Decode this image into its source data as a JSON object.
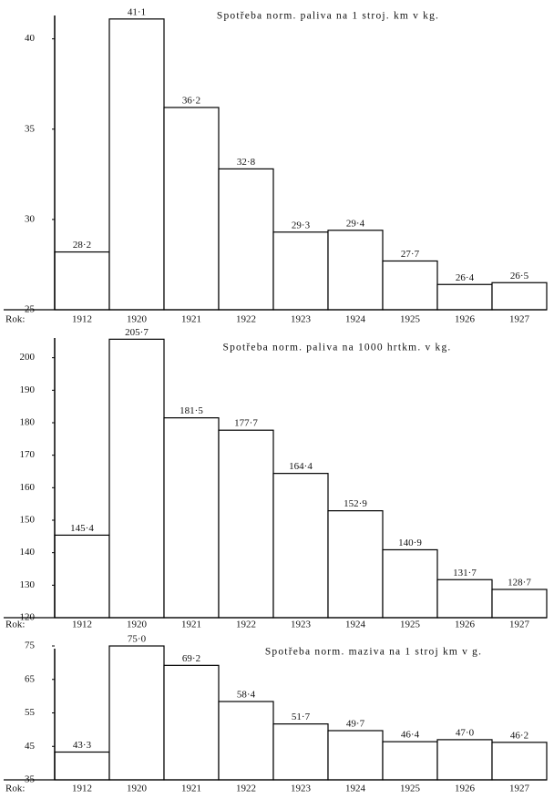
{
  "chart_data": [
    {
      "type": "bar",
      "title": "Spotřeba norm. paliva na 1 stroj. km v kg.",
      "x_label": "Rok:",
      "categories": [
        "1912",
        "1920",
        "1921",
        "1922",
        "1923",
        "1924",
        "1925",
        "1926",
        "1927"
      ],
      "values": [
        28.2,
        41.1,
        36.2,
        32.8,
        29.3,
        29.4,
        27.7,
        26.4,
        26.5
      ],
      "value_labels": [
        "28·2",
        "41·1",
        "36·2",
        "32·8",
        "29·3",
        "29·4",
        "27·7",
        "26·4",
        "26·5"
      ],
      "color": "#ffffff",
      "edgecolor": "#000000",
      "ylim": [
        25,
        42
      ],
      "yticks": [
        25,
        30,
        35,
        40
      ],
      "grid": false
    },
    {
      "type": "bar",
      "title": "Spotřeba norm. paliva na 1000 hrtkm. v kg.",
      "x_label": "Rok:",
      "categories": [
        "1912",
        "1920",
        "1921",
        "1922",
        "1923",
        "1924",
        "1925",
        "1926",
        "1927"
      ],
      "values": [
        145.4,
        205.7,
        181.5,
        177.7,
        164.4,
        152.9,
        140.9,
        131.7,
        128.7
      ],
      "value_labels": [
        "145·4",
        "205·7",
        "181·5",
        "177·7",
        "164·4",
        "152·9",
        "140·9",
        "131·7",
        "128·7"
      ],
      "color": "#ffffff",
      "edgecolor": "#000000",
      "ylim": [
        120,
        210
      ],
      "yticks": [
        120,
        130,
        140,
        150,
        160,
        170,
        180,
        190,
        200
      ],
      "grid": false
    },
    {
      "type": "bar",
      "title": "Spotřeba norm. maziva na 1 stroj km v g.",
      "x_label": "Rok:",
      "categories": [
        "1912",
        "1920",
        "1921",
        "1922",
        "1923",
        "1924",
        "1925",
        "1926",
        "1927"
      ],
      "values": [
        43.3,
        75.0,
        69.2,
        58.4,
        51.7,
        49.7,
        46.4,
        47.0,
        46.2
      ],
      "value_labels": [
        "43·3",
        "75·0",
        "69·2",
        "58·4",
        "51·7",
        "49·7",
        "46·4",
        "47·0",
        "46·2"
      ],
      "color": "#ffffff",
      "edgecolor": "#000000",
      "ylim": [
        35,
        78
      ],
      "yticks": [
        35,
        45,
        55,
        65,
        75
      ],
      "grid": false
    }
  ]
}
